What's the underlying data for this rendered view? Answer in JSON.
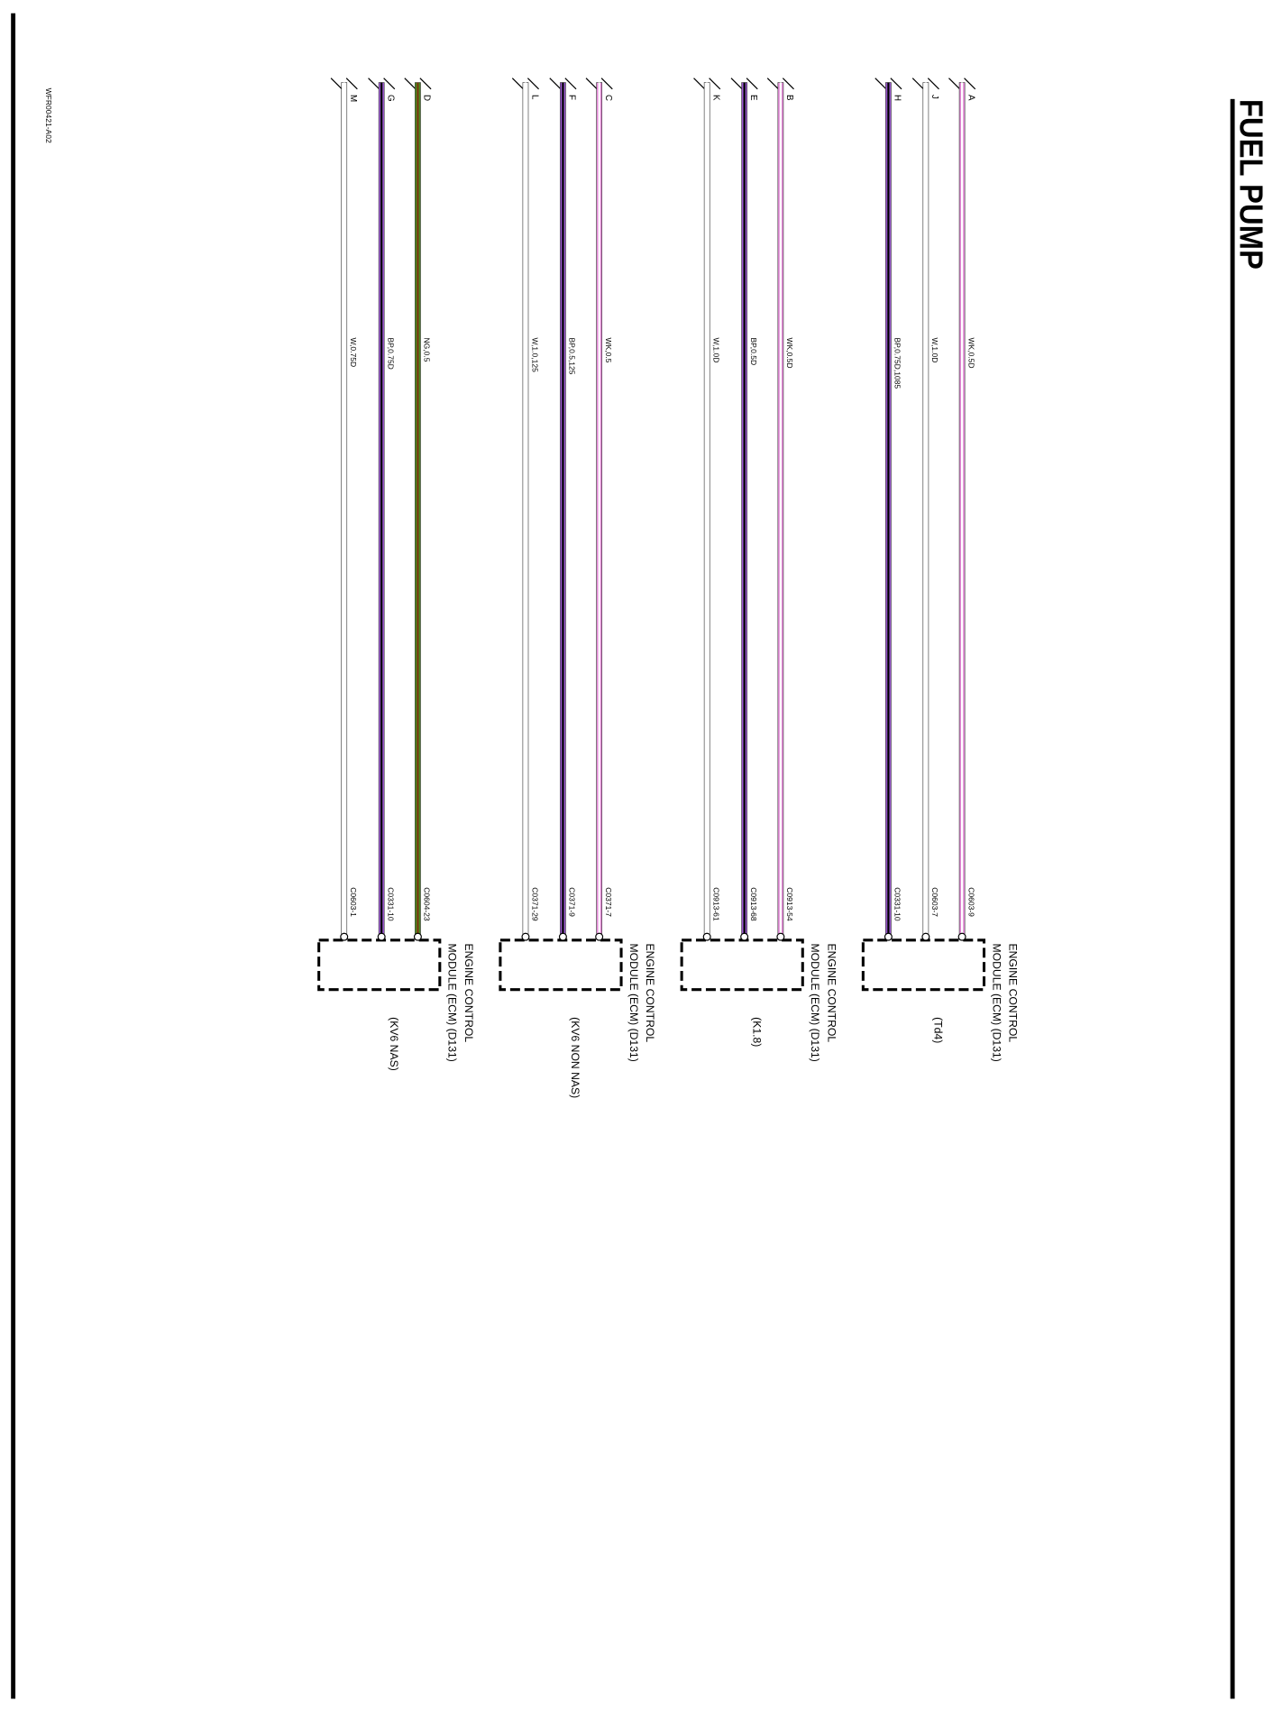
{
  "title": "FUEL PUMP",
  "drawing_code": "WFR00421-A02",
  "groups": [
    {
      "module": [
        "ENGINE CONTROL",
        "MODULE (ECM) (D131)"
      ],
      "variant": "(Td4)",
      "wires": [
        {
          "pin": "A",
          "spec": "WK,0.5D",
          "connector": "C0603-9",
          "color": "#e58ad8",
          "core": "#ffffff"
        },
        {
          "pin": "J",
          "spec": "W,1.0D",
          "connector": "C0603-7",
          "color": "#ffffff",
          "core": "#ffffff"
        },
        {
          "pin": "H",
          "spec": "BP,0.75D,1085",
          "connector": "C0331-10",
          "color": "#9b59d0",
          "core": "#000000"
        }
      ]
    },
    {
      "module": [
        "ENGINE CONTROL",
        "MODULE (ECM) (D131)"
      ],
      "variant": "(K1.8)",
      "wires": [
        {
          "pin": "B",
          "spec": "WK,0.5D",
          "connector": "C0913-54",
          "color": "#e58ad8",
          "core": "#ffffff"
        },
        {
          "pin": "E",
          "spec": "BP,0.5D",
          "connector": "C0913-68",
          "color": "#9b59d0",
          "core": "#000000"
        },
        {
          "pin": "K",
          "spec": "W,1.0D",
          "connector": "C0913-61",
          "color": "#ffffff",
          "core": "#ffffff"
        }
      ]
    },
    {
      "module": [
        "ENGINE CONTROL",
        "MODULE (ECM) (D131)"
      ],
      "variant": "(KV6 NON NAS)",
      "wires": [
        {
          "pin": "C",
          "spec": "WK,0.5",
          "connector": "C0371-7",
          "color": "#e58ad8",
          "core": "#ffffff"
        },
        {
          "pin": "F",
          "spec": "BP,0.5,125",
          "connector": "C0371-9",
          "color": "#9b59d0",
          "core": "#000000"
        },
        {
          "pin": "L",
          "spec": "W,1.0,125",
          "connector": "C0371-29",
          "color": "#ffffff",
          "core": "#ffffff"
        }
      ]
    },
    {
      "module": [
        "ENGINE CONTROL",
        "MODULE (ECM) (D131)"
      ],
      "variant": "(KV6 NAS)",
      "wires": [
        {
          "pin": "D",
          "spec": "NG,0.5",
          "connector": "C0604-23",
          "color": "#4a8a1e",
          "core": "#7a3a10"
        },
        {
          "pin": "G",
          "spec": "BP,0.75D",
          "connector": "C0331-10",
          "color": "#9b59d0",
          "core": "#000000"
        },
        {
          "pin": "M",
          "spec": "W,0.75D",
          "connector": "C0603-1",
          "color": "#ffffff",
          "core": "#ffffff"
        }
      ]
    }
  ]
}
